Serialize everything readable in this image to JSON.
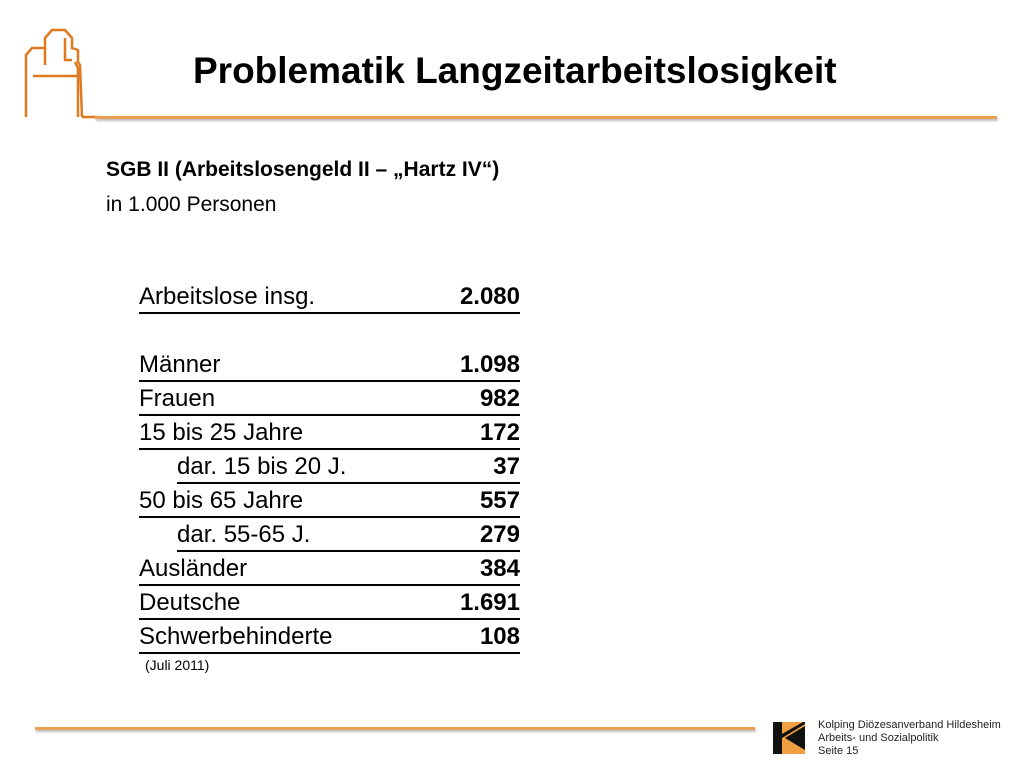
{
  "title": "Problematik Langzeitarbeitslosigkeit",
  "subtitle": "SGB II (Arbeitslosengeld II – „Hartz IV“)",
  "unit": "in 1.000 Personen",
  "rows": [
    {
      "label": "Arbeitslose insg.",
      "value": "2.080",
      "indent": false
    },
    {
      "label": "Männer",
      "value": "1.098",
      "indent": false
    },
    {
      "label": "Frauen",
      "value": "982",
      "indent": false
    },
    {
      "label": "15 bis 25 Jahre",
      "value": "172",
      "indent": false
    },
    {
      "label": "dar. 15 bis 20 J.",
      "value": "37",
      "indent": true
    },
    {
      "label": "50 bis 65 Jahre",
      "value": "557",
      "indent": false
    },
    {
      "label": "dar. 55-65 J.",
      "value": "279",
      "indent": true
    },
    {
      "label": "Ausländer",
      "value": "384",
      "indent": false
    },
    {
      "label": "Deutsche",
      "value": "1.691",
      "indent": false
    },
    {
      "label": "Schwerbehinderte",
      "value": "108",
      "indent": false
    }
  ],
  "note": "(Juli 2011)",
  "footer": {
    "line1": "Kolping Diözesanverband Hildesheim",
    "line2": "Arbeits- und Sozialpolitik",
    "line3": "Seite 15"
  },
  "colors": {
    "accent": "#e8a050",
    "logo_orange": "#f0a040"
  }
}
